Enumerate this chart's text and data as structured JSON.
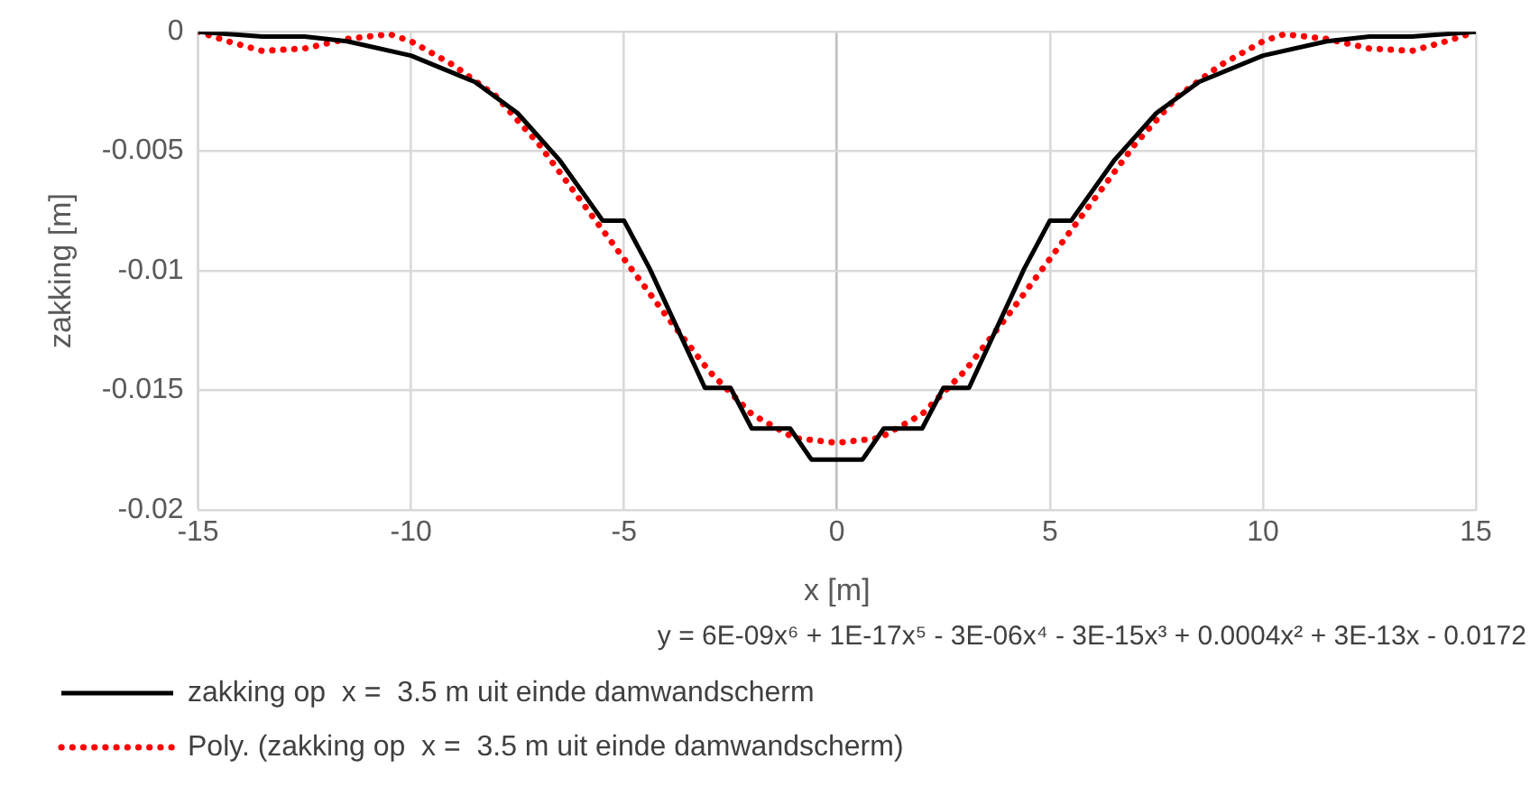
{
  "chart_data": {
    "type": "line",
    "xlabel": "x [m]",
    "ylabel": "zakking [m]",
    "xlim": [
      -15,
      15
    ],
    "xticks": [
      -15,
      -10,
      -5,
      0,
      5,
      10,
      15
    ],
    "ylim": [
      -0.02,
      0
    ],
    "yticks": [
      -0.02,
      -0.015,
      -0.01,
      -0.005,
      0
    ],
    "grid": true,
    "legend": "bottom",
    "marker": "none",
    "annotations": [
      "y = 6E-09x⁶ + 1E-17x⁵ - 3E-06x⁴ - 3E-15x³ + 0.0004x² + 3E-13x - 0.0172"
    ],
    "series": [
      {
        "name": "zakking op  x =  3.5 m uit einde damwandscherm",
        "color": "#000000",
        "line_style": "solid",
        "x": [
          -15,
          -13.5,
          -12.5,
          -11.5,
          -10,
          -8.5,
          -7.5,
          -6.5,
          -5.5,
          -5,
          -4.4,
          -3.1,
          -2.5,
          -2,
          -1.1,
          -0.6,
          0.6,
          1.1,
          2,
          2.5,
          3.1,
          4.4,
          5,
          5.5,
          6.5,
          7.5,
          8.5,
          10,
          11.5,
          12.5,
          13.5,
          15
        ],
        "values": [
          0,
          -0.0002,
          -0.0002,
          -0.0004,
          -0.001,
          -0.0021,
          -0.0034,
          -0.0054,
          -0.0079,
          -0.0079,
          -0.0099,
          -0.0149,
          -0.0149,
          -0.0166,
          -0.0166,
          -0.0179,
          -0.0179,
          -0.0166,
          -0.0166,
          -0.0149,
          -0.0149,
          -0.0099,
          -0.0079,
          -0.0079,
          -0.0054,
          -0.0034,
          -0.0021,
          -0.001,
          -0.0004,
          -0.0002,
          -0.0002,
          0
        ]
      },
      {
        "name": "Poly. (zakking op  x =  3.5 m uit einde damwandscherm)",
        "color": "#ff0000",
        "line_style": "dotted",
        "x": [
          -15,
          -14.3,
          -13.5,
          -12.5,
          -11.5,
          -10.5,
          -10,
          -9,
          -8,
          -7,
          -6,
          -5,
          -4,
          -3,
          -2,
          -1,
          0,
          1,
          2,
          3,
          4,
          5,
          6,
          7,
          8,
          9,
          10,
          10.5,
          11.5,
          12.5,
          13.5,
          14.3,
          15
        ],
        "values": [
          0,
          -0.0004,
          -0.0008,
          -0.0007,
          -0.0003,
          -0.0001,
          -0.0004,
          -0.0014,
          -0.0027,
          -0.0047,
          -0.0071,
          -0.0095,
          -0.0119,
          -0.0142,
          -0.016,
          -0.017,
          -0.0172,
          -0.017,
          -0.016,
          -0.0142,
          -0.0119,
          -0.0095,
          -0.0071,
          -0.0047,
          -0.0027,
          -0.0014,
          -0.0004,
          -0.0001,
          -0.0003,
          -0.0007,
          -0.0008,
          -0.0004,
          0
        ]
      }
    ]
  }
}
